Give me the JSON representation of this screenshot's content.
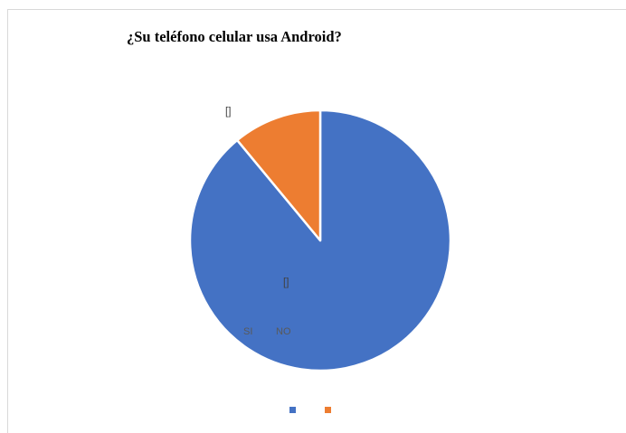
{
  "chart_data": {
    "type": "pie",
    "title": "¿Su teléfono celular usa Android?",
    "categories": [
      "SI",
      "NO"
    ],
    "values": [
      89,
      11
    ],
    "colors": [
      "#4472c4",
      "#ed7d31"
    ],
    "data_labels": [
      "[]",
      "[]"
    ],
    "legend": {
      "position": "bottom",
      "entries": [
        "",
        ""
      ]
    }
  }
}
